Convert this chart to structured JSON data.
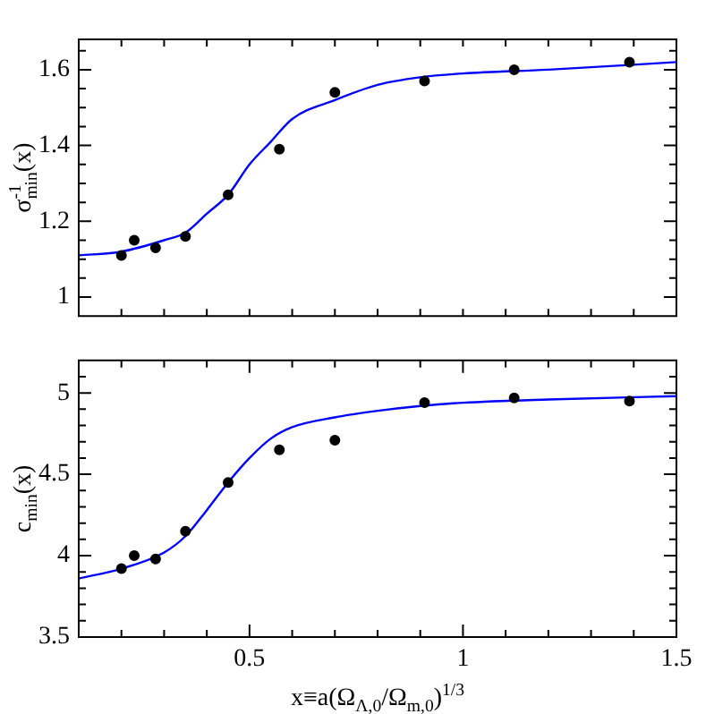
{
  "chart_data": [
    {
      "type": "scatter",
      "ylabel": "σ$^{-1}$$_{min}$(x)",
      "xlim": [
        0.1,
        1.5
      ],
      "ylim": [
        0.95,
        1.68
      ],
      "tick_labels": "y",
      "xticks": [
        {
          "value": 0.1,
          "label": null
        },
        {
          "value": 0.2,
          "label": null
        },
        {
          "value": 0.3,
          "label": null
        },
        {
          "value": 0.4,
          "label": null
        },
        {
          "value": 0.5,
          "label": null
        },
        {
          "value": 0.6,
          "label": null
        },
        {
          "value": 0.7,
          "label": null
        },
        {
          "value": 0.8,
          "label": null
        },
        {
          "value": 0.9,
          "label": null
        },
        {
          "value": 1,
          "label": null
        },
        {
          "value": 1.1,
          "label": null
        },
        {
          "value": 1.2,
          "label": null
        },
        {
          "value": 1.3,
          "label": null
        },
        {
          "value": 1.4,
          "label": null
        },
        {
          "value": 1.5,
          "label": null
        }
      ],
      "yticks": [
        1,
        {
          "value": 1.05,
          "label": null
        },
        {
          "value": 1.1,
          "label": null
        },
        {
          "value": 1.15,
          "label": null
        },
        1.2,
        {
          "value": 1.25,
          "label": null
        },
        {
          "value": 1.3,
          "label": null
        },
        {
          "value": 1.35,
          "label": null
        },
        1.4,
        {
          "value": 1.45,
          "label": null
        },
        {
          "value": 1.5,
          "label": null
        },
        {
          "value": 1.55,
          "label": null
        },
        1.6,
        {
          "value": 1.65,
          "label": null
        }
      ],
      "series": [
        {
          "marker": "circle",
          "color": "#000000",
          "x": [
            0.2,
            0.23,
            0.28,
            0.35,
            0.45,
            0.57,
            0.7,
            0.91,
            1.12,
            1.39
          ],
          "values": [
            1.11,
            1.15,
            1.13,
            1.16,
            1.27,
            1.39,
            1.54,
            1.57,
            1.6,
            1.62
          ]
        },
        {
          "type": "line",
          "marker": "none",
          "color": "#0000ff",
          "x": [
            0.1,
            0.2,
            0.3,
            0.35,
            0.4,
            0.45,
            0.5,
            0.55,
            0.6,
            0.7,
            0.8,
            0.9,
            1.0,
            1.2,
            1.5
          ],
          "values": [
            1.11,
            1.12,
            1.15,
            1.17,
            1.22,
            1.27,
            1.35,
            1.41,
            1.47,
            1.52,
            1.56,
            1.58,
            1.59,
            1.6,
            1.62
          ]
        }
      ]
    },
    {
      "type": "scatter",
      "xlabel": "x≡a(Ω$_{Λ,0}$/Ω$_{m,0}$)$^{1/3}$",
      "ylabel": "c$_{min}$(x)",
      "xlim": [
        0.1,
        1.5
      ],
      "ylim": [
        3.5,
        5.2
      ],
      "xticks": [
        {
          "value": 0.1,
          "label": null
        },
        {
          "value": 0.2,
          "label": null
        },
        {
          "value": 0.3,
          "label": null
        },
        {
          "value": 0.4,
          "label": null
        },
        0.5,
        {
          "value": 0.6,
          "label": null
        },
        {
          "value": 0.7,
          "label": null
        },
        {
          "value": 0.8,
          "label": null
        },
        {
          "value": 0.9,
          "label": null
        },
        1,
        {
          "value": 1.1,
          "label": null
        },
        {
          "value": 1.2,
          "label": null
        },
        {
          "value": 1.3,
          "label": null
        },
        {
          "value": 1.4,
          "label": null
        },
        1.5
      ],
      "yticks": [
        3.5,
        {
          "value": 3.6,
          "label": null
        },
        {
          "value": 3.7,
          "label": null
        },
        {
          "value": 3.8,
          "label": null
        },
        {
          "value": 3.9,
          "label": null
        },
        4,
        {
          "value": 4.1,
          "label": null
        },
        {
          "value": 4.2,
          "label": null
        },
        {
          "value": 4.3,
          "label": null
        },
        {
          "value": 4.4,
          "label": null
        },
        4.5,
        {
          "value": 4.6,
          "label": null
        },
        {
          "value": 4.7,
          "label": null
        },
        {
          "value": 4.8,
          "label": null
        },
        {
          "value": 4.9,
          "label": null
        },
        5,
        {
          "value": 5.1,
          "label": null
        }
      ],
      "series": [
        {
          "marker": "circle",
          "color": "#000000",
          "x": [
            0.2,
            0.23,
            0.28,
            0.35,
            0.45,
            0.57,
            0.7,
            0.91,
            1.12,
            1.39
          ],
          "values": [
            3.92,
            4.0,
            3.98,
            4.15,
            4.45,
            4.65,
            4.71,
            4.94,
            4.97,
            4.95
          ]
        },
        {
          "type": "line",
          "marker": "none",
          "color": "#0000ff",
          "x": [
            0.1,
            0.2,
            0.3,
            0.35,
            0.4,
            0.45,
            0.5,
            0.55,
            0.6,
            0.7,
            0.8,
            0.9,
            1.0,
            1.2,
            1.5
          ],
          "values": [
            3.86,
            3.92,
            4.02,
            4.12,
            4.28,
            4.45,
            4.6,
            4.72,
            4.79,
            4.85,
            4.89,
            4.92,
            4.94,
            4.96,
            4.98
          ]
        }
      ]
    }
  ]
}
